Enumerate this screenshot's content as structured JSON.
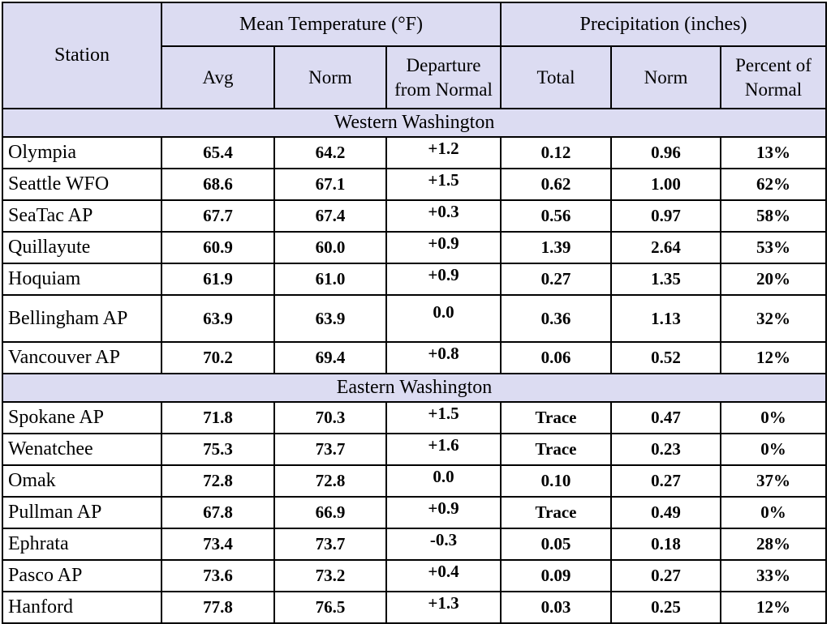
{
  "table": {
    "headers": {
      "station": "Station",
      "temp_group": "Mean Temperature (°F)",
      "precip_group": "Precipitation (inches)",
      "temp_avg": "Avg",
      "temp_norm": "Norm",
      "temp_departure_line1": "Departure",
      "temp_departure_line2": "from Normal",
      "precip_total": "Total",
      "precip_norm": "Norm",
      "precip_percent_line1": "Percent of",
      "precip_percent_line2": "Normal"
    },
    "sections": [
      {
        "title": "Western Washington",
        "rows": [
          {
            "station": "Olympia",
            "avg": "65.4",
            "norm": "64.2",
            "departure": "+1.2",
            "total": "0.12",
            "pnorm": "0.96",
            "percent": "13%"
          },
          {
            "station": "Seattle WFO",
            "avg": "68.6",
            "norm": "67.1",
            "departure": "+1.5",
            "total": "0.62",
            "pnorm": "1.00",
            "percent": "62%"
          },
          {
            "station": "SeaTac AP",
            "avg": "67.7",
            "norm": "67.4",
            "departure": "+0.3",
            "total": "0.56",
            "pnorm": "0.97",
            "percent": "58%"
          },
          {
            "station": "Quillayute",
            "avg": "60.9",
            "norm": "60.0",
            "departure": "+0.9",
            "total": "1.39",
            "pnorm": "2.64",
            "percent": "53%"
          },
          {
            "station": "Hoquiam",
            "avg": "61.9",
            "norm": "61.0",
            "departure": "+0.9",
            "total": "0.27",
            "pnorm": "1.35",
            "percent": "20%"
          },
          {
            "station": "Bellingham AP",
            "avg": "63.9",
            "norm": "63.9",
            "departure": "0.0",
            "total": "0.36",
            "pnorm": "1.13",
            "percent": "32%"
          },
          {
            "station": "Vancouver AP",
            "avg": "70.2",
            "norm": "69.4",
            "departure": "+0.8",
            "total": "0.06",
            "pnorm": "0.52",
            "percent": "12%"
          }
        ]
      },
      {
        "title": "Eastern Washington",
        "rows": [
          {
            "station": "Spokane AP",
            "avg": "71.8",
            "norm": "70.3",
            "departure": "+1.5",
            "total": "Trace",
            "pnorm": "0.47",
            "percent": "0%"
          },
          {
            "station": "Wenatchee",
            "avg": "75.3",
            "norm": "73.7",
            "departure": "+1.6",
            "total": "Trace",
            "pnorm": "0.23",
            "percent": "0%"
          },
          {
            "station": "Omak",
            "avg": "72.8",
            "norm": "72.8",
            "departure": "0.0",
            "total": "0.10",
            "pnorm": "0.27",
            "percent": "37%"
          },
          {
            "station": "Pullman AP",
            "avg": "67.8",
            "norm": "66.9",
            "departure": "+0.9",
            "total": "Trace",
            "pnorm": "0.49",
            "percent": "0%"
          },
          {
            "station": "Ephrata",
            "avg": "73.4",
            "norm": "73.7",
            "departure": "-0.3",
            "total": "0.05",
            "pnorm": "0.18",
            "percent": "28%"
          },
          {
            "station": "Pasco AP",
            "avg": "73.6",
            "norm": "73.2",
            "departure": "+0.4",
            "total": "0.09",
            "pnorm": "0.27",
            "percent": "33%"
          },
          {
            "station": "Hanford",
            "avg": "77.8",
            "norm": "76.5",
            "departure": "+1.3",
            "total": "0.03",
            "pnorm": "0.25",
            "percent": "12%"
          }
        ]
      }
    ],
    "colors": {
      "header_background": "#dcdcf2",
      "border": "#000000"
    }
  }
}
